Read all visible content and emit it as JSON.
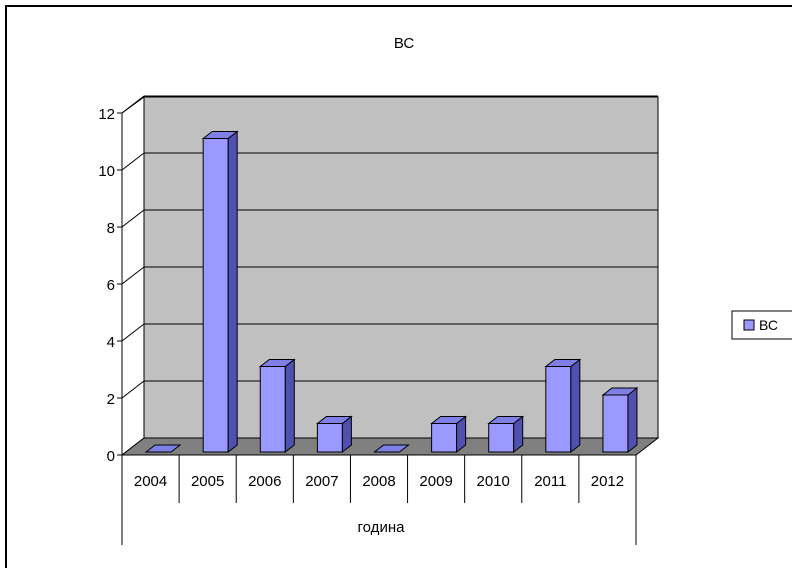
{
  "chart_data": {
    "type": "bar",
    "title": "ВС",
    "xlabel": "година",
    "ylabel": "",
    "categories": [
      "2004",
      "2005",
      "2006",
      "2007",
      "2008",
      "2009",
      "2010",
      "2011",
      "2012"
    ],
    "series": [
      {
        "name": "ВС",
        "values": [
          0,
          11,
          3,
          1,
          0,
          1,
          1,
          3,
          2
        ]
      }
    ],
    "yticks": [
      "0",
      "2",
      "4",
      "6",
      "8",
      "10",
      "12"
    ],
    "ylim": [
      0,
      12
    ],
    "grid": true,
    "legend_position": "right",
    "three_d": true,
    "colors": {
      "bar_front": "#9999ff",
      "bar_top": "#7f7fe6",
      "bar_side": "#5050b0",
      "wall": "#c0c0c0",
      "floor": "#808080",
      "border": "#000000"
    }
  }
}
